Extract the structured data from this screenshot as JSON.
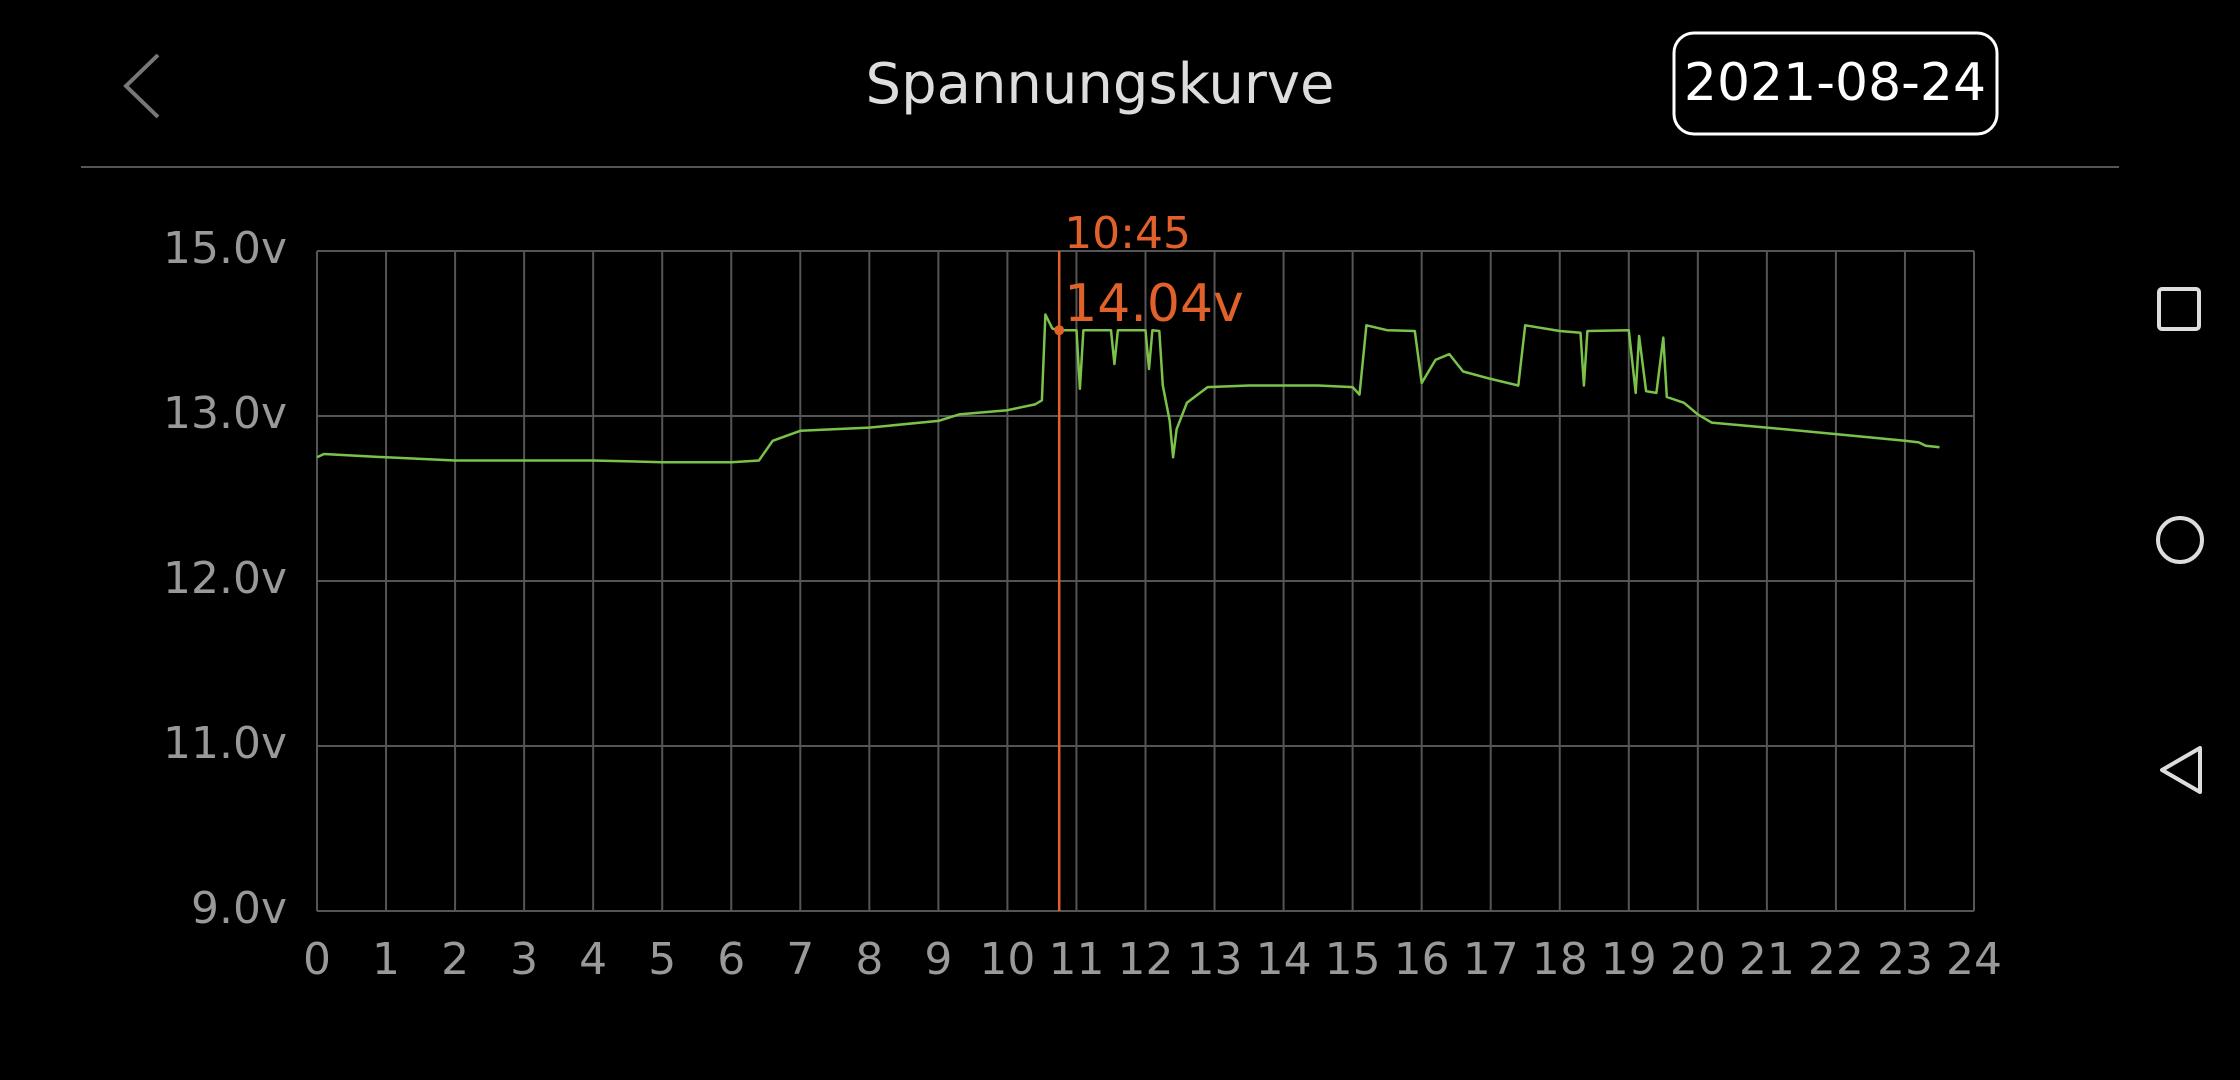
{
  "header": {
    "title": "Spannungskurve",
    "date": "2021-08-24"
  },
  "chart_data": {
    "type": "line",
    "x": [
      0,
      0.1,
      1,
      2,
      3,
      4,
      5,
      6,
      6.4,
      6.6,
      7,
      8,
      9,
      9.3,
      10,
      10.4,
      10.5,
      10.55,
      10.65,
      10.75,
      11.0,
      11.05,
      11.1,
      11.5,
      11.55,
      11.6,
      12.0,
      12.05,
      12.1,
      12.2,
      12.25,
      12.35,
      12.4,
      12.45,
      12.6,
      12.9,
      13.5,
      14.5,
      15.0,
      15.1,
      15.2,
      15.5,
      15.9,
      16.0,
      16.2,
      16.4,
      16.6,
      17.0,
      17.4,
      17.5,
      18.0,
      18.3,
      18.35,
      18.4,
      19.0,
      19.1,
      19.15,
      19.25,
      19.4,
      19.5,
      19.55,
      19.8,
      20.0,
      20.2,
      21,
      22,
      23,
      23.2,
      23.3,
      23.5
    ],
    "values": [
      12.75,
      12.77,
      12.75,
      12.73,
      12.73,
      12.73,
      12.72,
      12.72,
      12.73,
      12.85,
      12.91,
      12.93,
      12.97,
      13.02,
      13.07,
      13.14,
      13.19,
      14.23,
      14.06,
      14.04,
      14.04,
      13.33,
      14.04,
      14.04,
      13.63,
      14.04,
      14.04,
      13.57,
      14.04,
      14.03,
      13.37,
      12.97,
      12.75,
      12.92,
      13.16,
      13.35,
      13.37,
      13.37,
      13.35,
      13.26,
      14.1,
      14.04,
      14.03,
      13.4,
      13.68,
      13.75,
      13.54,
      13.45,
      13.37,
      14.1,
      14.03,
      14.01,
      13.37,
      14.03,
      14.04,
      13.28,
      13.97,
      13.3,
      13.28,
      13.95,
      13.23,
      13.16,
      13.02,
      12.96,
      12.93,
      12.89,
      12.85,
      12.84,
      12.82,
      12.81
    ],
    "color": "#7cc24a",
    "xlim": [
      0,
      24
    ],
    "xticks": [
      0,
      1,
      2,
      3,
      4,
      5,
      6,
      7,
      8,
      9,
      10,
      11,
      12,
      13,
      14,
      15,
      16,
      17,
      18,
      19,
      20,
      21,
      22,
      23,
      24
    ],
    "ylim": [
      9,
      15
    ],
    "yticks": [
      {
        "value": 9,
        "label": "9.0v"
      },
      {
        "value": 11,
        "label": "11.0v"
      },
      {
        "value": 12,
        "label": "12.0v"
      },
      {
        "value": 13,
        "label": "13.0v"
      },
      {
        "value": 15,
        "label": "15.0v"
      }
    ],
    "grid": true,
    "marker": {
      "label": "10:45",
      "x": 10.75,
      "value": 14.04,
      "value_label": "14.04v",
      "color": "#e0622a"
    }
  }
}
